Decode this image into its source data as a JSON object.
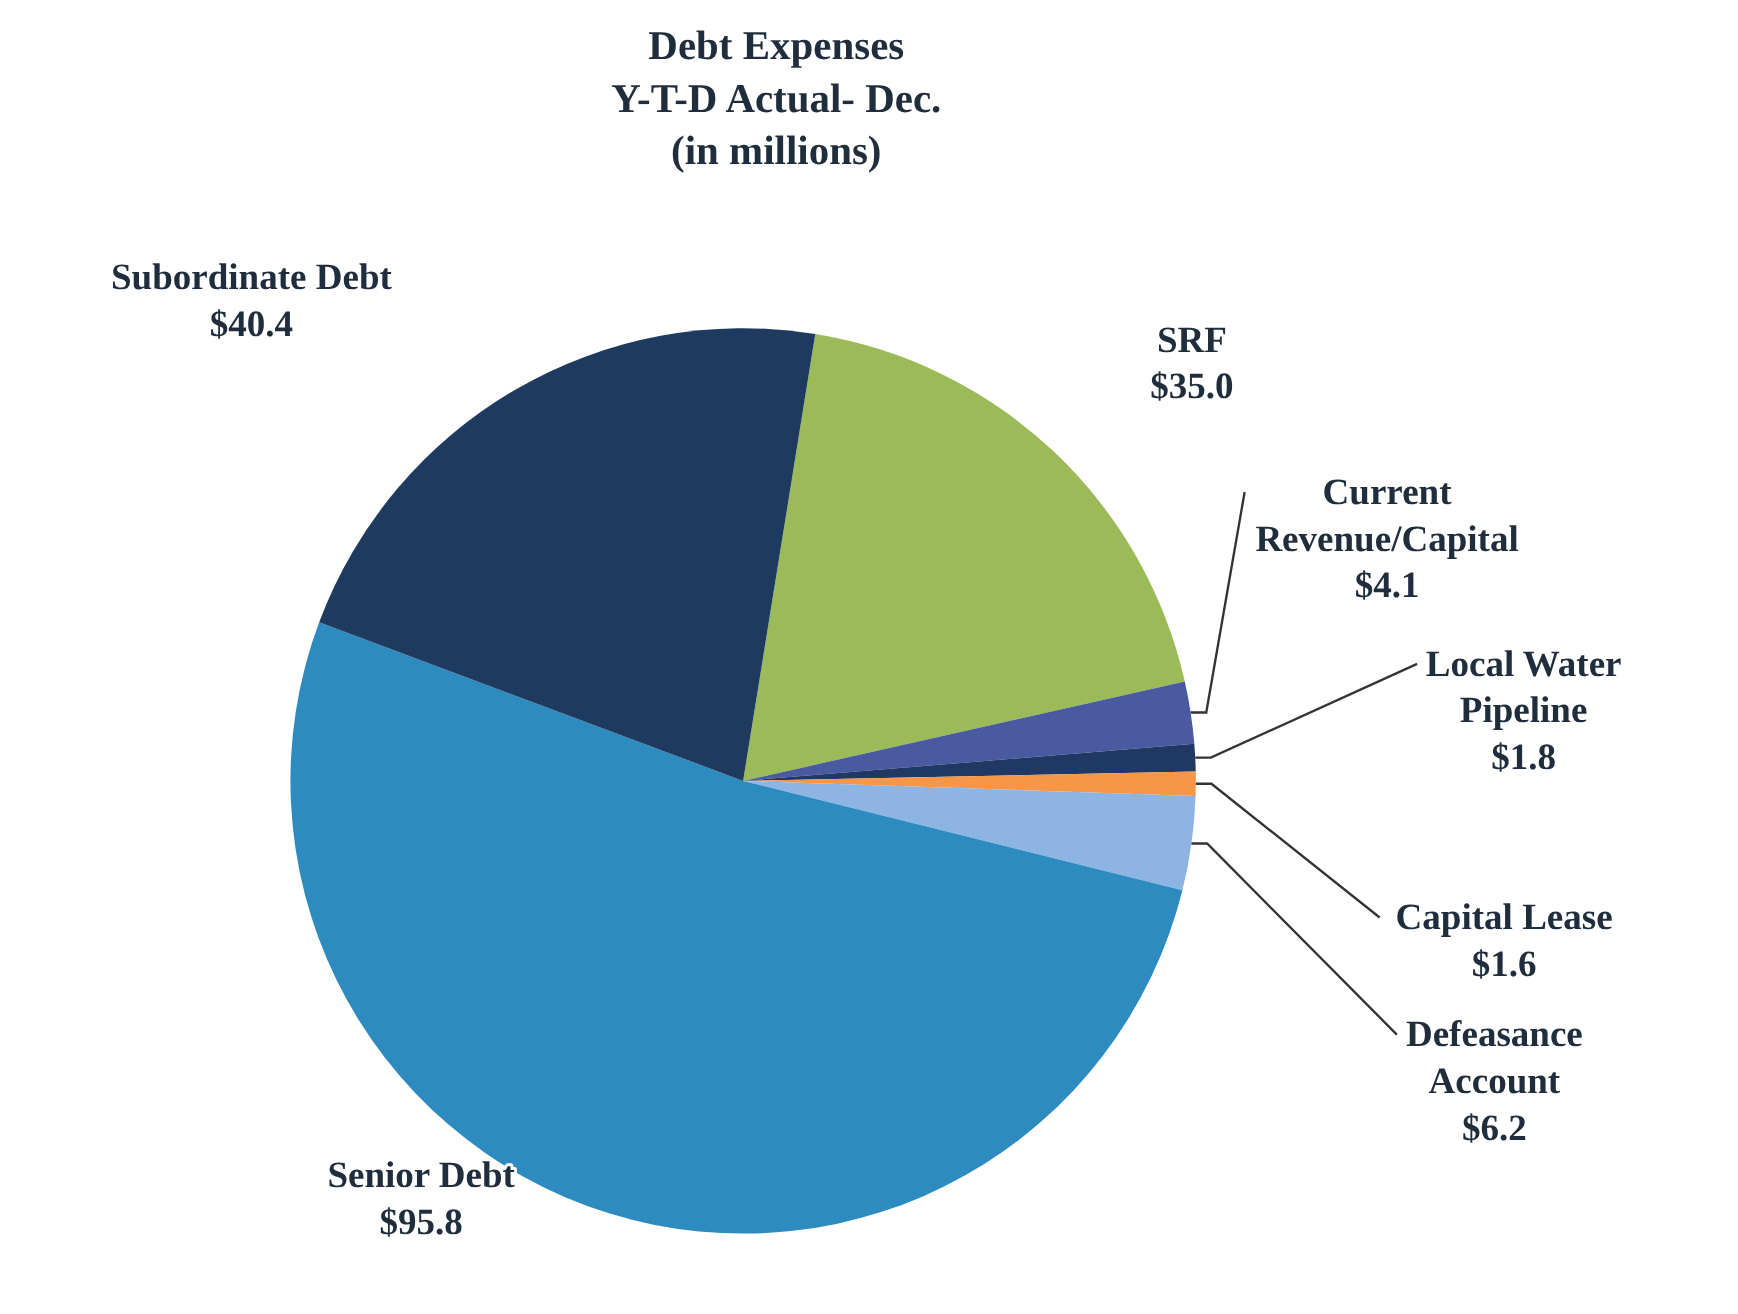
{
  "chart_data": {
    "type": "pie",
    "title": "Debt Expenses\nY-T-D Actual- Dec.\n(in millions)",
    "categories": [
      "SRF",
      "Current Revenue/Capital",
      "Local Water Pipeline",
      "Capital Lease",
      "Defeasance Account",
      "Senior Debt",
      "Subordinate Debt"
    ],
    "values": [
      35.0,
      4.1,
      1.8,
      1.6,
      6.2,
      95.8,
      40.4
    ],
    "value_labels": [
      "$35.0",
      "$4.1",
      "$1.8",
      "$1.6",
      "$6.2",
      "$95.8",
      "$40.4"
    ],
    "colors": [
      "#9bbb59",
      "#4a5aa0",
      "#1f3864",
      "#f79646",
      "#8db4e2",
      "#2e8bc0",
      "#1f3a5f"
    ]
  }
}
